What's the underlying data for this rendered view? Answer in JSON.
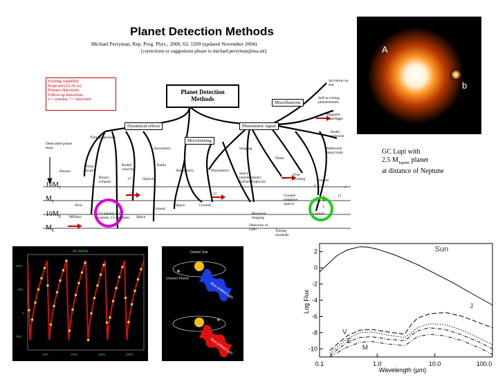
{
  "tree": {
    "title": "Planet Detection Methods",
    "author_line": "Michael Perryman, Rep. Prog. Phys., 2000, 63, 1209 (updated November 2004)",
    "contact_line": "[corrections or suggestions please to michael.perryman@esa.int]",
    "legend": [
      "Existing capability",
      "Projected (10-20 yr)",
      "Primary detections",
      "Follow-up detections",
      "n = systems; ? = uncertain"
    ],
    "root": "Planet Detection Methods",
    "branches": {
      "dynamical": "Dynamical effects",
      "microlensing": "Microlensing",
      "photometric": "Photometric signal",
      "misc": "Miscellaneous"
    },
    "labels": {
      "timing": "Timing (ground)",
      "detectable_mass": "Detectable planet mass",
      "pulsars": "Pulsars",
      "white_dwarfs": "White dwarfs",
      "binary_eclipses": "Binary eclipses",
      "radial_velocity": "Radial velocity",
      "astrometry": "Astrometry",
      "radio": "Radio",
      "optical": "Optical",
      "astrometric": "Astrometric",
      "photometric2": "Photometric",
      "imaging": "Imaging",
      "disks": "Disks",
      "space_interf": "Space interferometry (infrared/optical)",
      "free_floating": "Free floating",
      "transits": "Transits",
      "reflected": "Reflected/ black body",
      "radio_emission": "Radio emission",
      "accretion": "Accretion on star",
      "self_accreting": "Self-accreting planetesimals",
      "magnetic": "Magnetic superflares",
      "slow": "Slow",
      "millisec": "Millisec",
      "ground": "Ground",
      "space": "Space",
      "ground_adaptive": "Ground (adaptive optics)",
      "resolved_imaging": "Resolved imaging",
      "detection_life": "Detection of Life?",
      "timing_residuals": "Timing residuals",
      "planets_count": "133 planets (117 systems, 13 multiple)"
    },
    "mass_levels": [
      "10M",
      "M",
      "10M",
      "M"
    ],
    "mass_subscripts": [
      "J",
      "J",
      "E",
      "E"
    ],
    "numbers": [
      "2",
      "27",
      "27",
      "17",
      "17",
      "5",
      "1",
      "2",
      "1",
      "??",
      "17"
    ]
  },
  "photo": {
    "label_a": "A",
    "label_b": "b"
  },
  "caption": {
    "line1": "GC Lupi with",
    "line2": "2.5 M",
    "line2_sub": "Jupiter",
    "line2_tail": " planet",
    "line3": "at distance of Neptune"
  },
  "orbit_panel": {
    "distant_star": "Distant Star",
    "unseen_planet": "Unseen Planet",
    "blue_shifted": "Blue-shifted Light",
    "red_shifted": "Red-shifted Light"
  },
  "chart_data": {
    "type": "line",
    "xlabel": "Wavelength (μm)",
    "ylabel": "Log Flux",
    "x_scale": "log",
    "xlim": [
      0.1,
      100
    ],
    "ylim": [
      -11,
      3
    ],
    "x_ticks": [
      "0.1",
      "1.0",
      "10.0",
      "100.0"
    ],
    "y_ticks": [
      "2",
      "0",
      "-2",
      "-4",
      "-6",
      "-8",
      "-10"
    ],
    "series": [
      {
        "name": "Sun",
        "x": [
          0.1,
          0.2,
          0.3,
          0.5,
          0.7,
          1,
          2,
          5,
          10,
          20,
          50,
          100
        ],
        "y": [
          -0.5,
          1.5,
          2.2,
          2.6,
          2.55,
          2.3,
          1.6,
          0.4,
          -0.7,
          -1.8,
          -3.4,
          -4.6
        ]
      },
      {
        "name": "J",
        "x": [
          0.15,
          0.3,
          0.5,
          0.8,
          1.5,
          3,
          4,
          5,
          8,
          15,
          30,
          60,
          100
        ],
        "y": [
          -10.2,
          -8.4,
          -7.7,
          -7.6,
          -7.9,
          -8.2,
          -6.9,
          -6.2,
          -5.7,
          -5.5,
          -6.0,
          -6.8,
          -7.4
        ]
      },
      {
        "name": "V",
        "x": [
          0.15,
          0.3,
          0.5,
          0.8,
          1.5,
          3,
          4,
          5,
          8,
          15,
          30,
          60,
          100
        ],
        "y": [
          -10.5,
          -8.8,
          -8.0,
          -7.9,
          -8.3,
          -8.6,
          -8.0,
          -7.4,
          -6.9,
          -7.0,
          -7.7,
          -8.7,
          -9.5
        ]
      },
      {
        "name": "E",
        "x": [
          0.15,
          0.3,
          0.5,
          0.8,
          1.5,
          3,
          4,
          5,
          8,
          15,
          30,
          60,
          100
        ],
        "y": [
          -10.8,
          -9.2,
          -8.6,
          -8.5,
          -8.8,
          -9.0,
          -8.3,
          -7.8,
          -7.4,
          -7.6,
          -8.3,
          -9.2,
          -10.0
        ]
      },
      {
        "name": "M",
        "x": [
          0.15,
          0.3,
          0.5,
          0.8,
          1.5,
          3,
          4,
          5,
          8,
          15,
          30,
          60,
          100
        ],
        "y": [
          -11.0,
          -9.8,
          -9.2,
          -9.1,
          -9.4,
          -9.6,
          -9.0,
          -8.5,
          -8.2,
          -8.4,
          -9.0,
          -9.9,
          -10.7
        ]
      }
    ]
  },
  "rv_panel": {
    "header": "HD 80606",
    "y_ticks": [
      "1000",
      "500",
      "0",
      "-500"
    ],
    "x_ticks": [
      "500",
      "1000",
      "1500",
      "2000"
    ]
  }
}
